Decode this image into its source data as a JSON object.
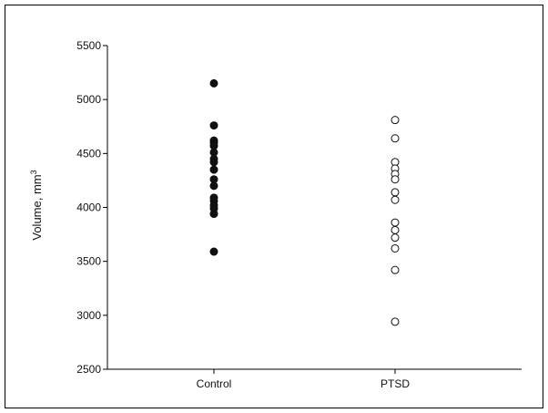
{
  "chart_data": {
    "type": "scatter",
    "title": "",
    "xlabel": "",
    "ylabel": "Volume, mm",
    "ylabel_superscript": "3",
    "ylim": [
      2500,
      5500
    ],
    "yticks": [
      2500,
      3000,
      3500,
      4000,
      4500,
      5000,
      5500
    ],
    "categories": [
      "Control",
      "PTSD"
    ],
    "grid": false,
    "series": [
      {
        "category": "Control",
        "marker": "filled-circle",
        "color": "#111111",
        "values": [
          5150,
          4760,
          4620,
          4600,
          4570,
          4510,
          4450,
          4420,
          4350,
          4260,
          4200,
          4090,
          4060,
          4020,
          3990,
          3940,
          3590
        ]
      },
      {
        "category": "PTSD",
        "marker": "open-circle",
        "color": "#111111",
        "values": [
          4810,
          4640,
          4420,
          4360,
          4310,
          4260,
          4140,
          4070,
          3860,
          3790,
          3720,
          3620,
          3420,
          2940
        ]
      }
    ]
  }
}
